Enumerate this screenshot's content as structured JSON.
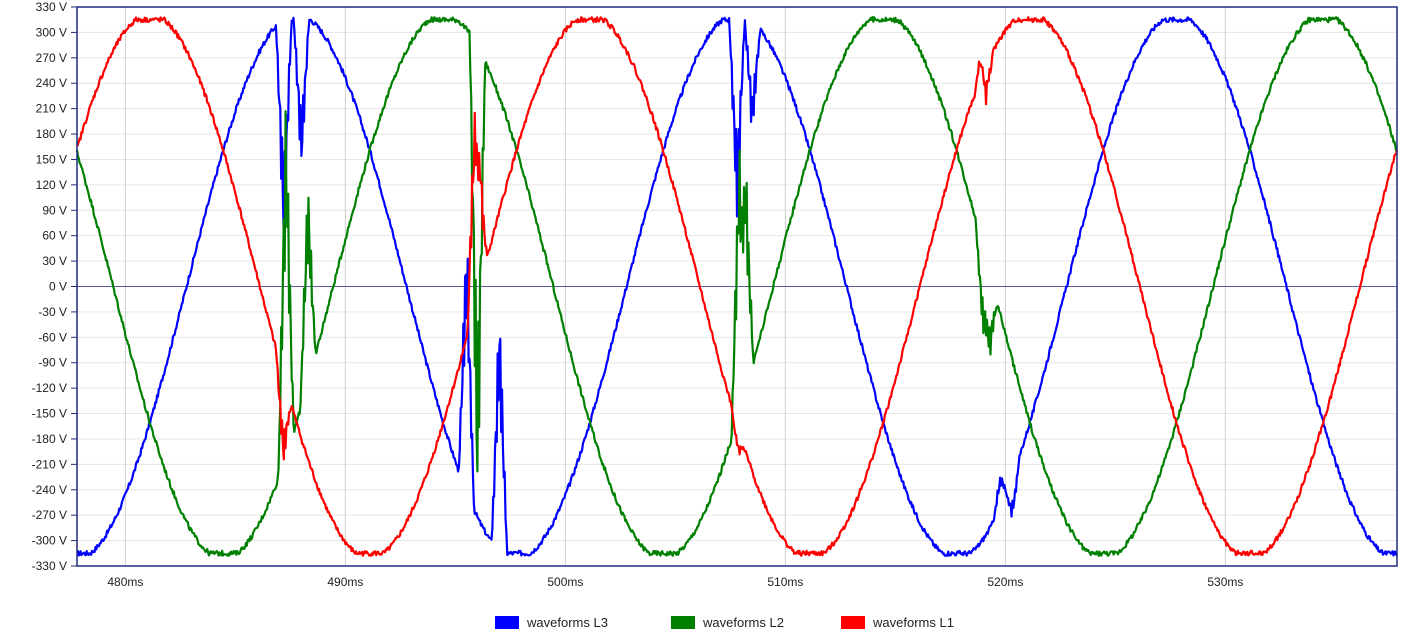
{
  "chart_data": {
    "type": "line",
    "title": "",
    "xlabel": "",
    "ylabel": "",
    "xlim": [
      477.8,
      537.8
    ],
    "ylim": [
      -330,
      330
    ],
    "y_ticks": [
      330,
      300,
      270,
      240,
      210,
      180,
      150,
      120,
      90,
      60,
      30,
      0,
      -30,
      -60,
      -90,
      -120,
      -150,
      -180,
      -210,
      -240,
      -270,
      -300,
      -330
    ],
    "y_tick_suffix": " V",
    "x_ticks": [
      480,
      490,
      500,
      510,
      520,
      530
    ],
    "x_tick_suffix": "ms",
    "grid": "vertical",
    "zero_line": true,
    "legend_position": "bottom-center",
    "amplitude_volts": 315,
    "period_ms": 20,
    "series": [
      {
        "name": "waveforms L3",
        "color": "#0000ff",
        "phase_deg": -50,
        "distortions": [
          {
            "x": 487.2,
            "y": 30
          },
          {
            "x": 488.0,
            "y": 130
          },
          {
            "x": 495.5,
            "y": 90
          },
          {
            "x": 497.0,
            "y": -10
          },
          {
            "x": 507.8,
            "y": 70
          },
          {
            "x": 508.5,
            "y": 170
          },
          {
            "x": 519.8,
            "y": -220
          },
          {
            "x": 520.3,
            "y": -275
          }
        ]
      },
      {
        "name": "waveforms L2",
        "color": "#008000",
        "phase_deg": 190,
        "distortions": [
          {
            "x": 487.3,
            "y": 240
          },
          {
            "x": 488.3,
            "y": 135
          },
          {
            "x": 496.0,
            "y": -300
          },
          {
            "x": 507.9,
            "y": 180
          },
          {
            "x": 508.2,
            "y": 160
          },
          {
            "x": 519.0,
            "y": -60
          },
          {
            "x": 519.3,
            "y": -90
          }
        ]
      },
      {
        "name": "waveforms L1",
        "color": "#ff0000",
        "phase_deg": 70,
        "distortions": [
          {
            "x": 487.2,
            "y": -215
          },
          {
            "x": 495.9,
            "y": 250
          },
          {
            "x": 496.1,
            "y": 160
          },
          {
            "x": 507.9,
            "y": -200
          },
          {
            "x": 519.0,
            "y": 320
          },
          {
            "x": 519.1,
            "y": 210
          }
        ]
      }
    ],
    "legend_order": [
      "waveforms L3",
      "waveforms L2",
      "waveforms L1"
    ]
  }
}
